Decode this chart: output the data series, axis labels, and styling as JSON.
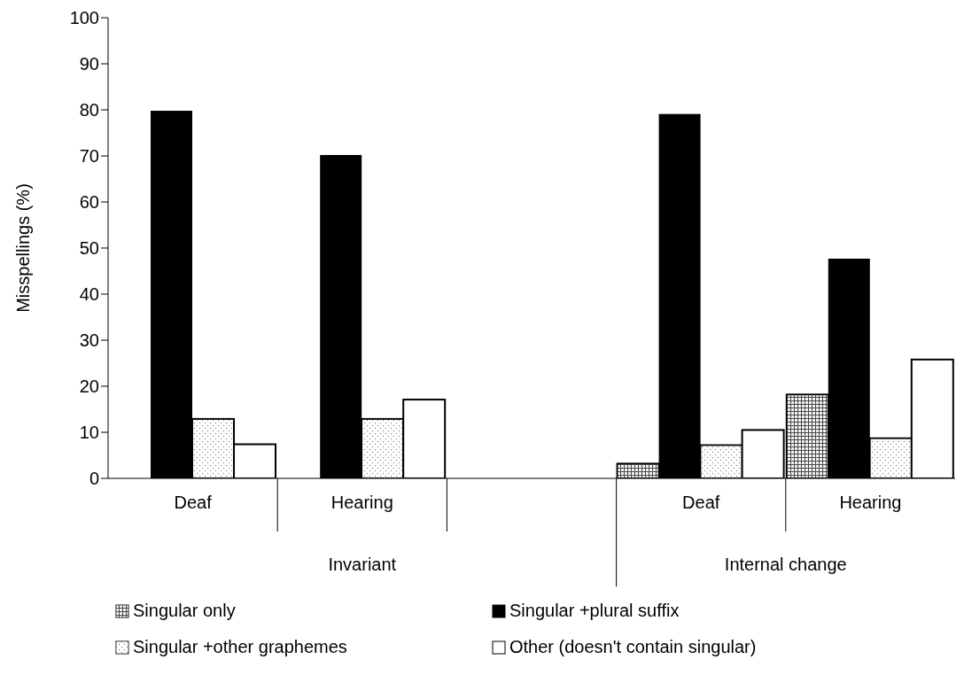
{
  "chart_data": {
    "type": "bar",
    "ylabel": "Misspellings (%)",
    "categories": [
      "Deaf",
      "Hearing",
      null,
      "Deaf",
      "Hearing"
    ],
    "series": [
      {
        "name": "Singular only",
        "color": "#bfbfbf",
        "values": [
          0,
          0,
          null,
          3.2,
          18.2
        ]
      },
      {
        "name": "Singular +plural suffix",
        "color": "#000000",
        "values": [
          79.8,
          70.2,
          null,
          79.1,
          47.7
        ]
      },
      {
        "name": "Singular +other graphemes",
        "color": "#f2f2f2",
        "values": [
          12.9,
          12.9,
          null,
          7.2,
          8.7
        ]
      },
      {
        "name": "Other (doesn't contain singular)",
        "color": "#ffffff",
        "values": [
          7.4,
          17.1,
          null,
          10.5,
          25.8
        ]
      }
    ],
    "annotations": [
      "Invariant",
      "Internal change"
    ],
    "ylim": [
      0,
      100
    ],
    "yticks": [
      0,
      10,
      20,
      30,
      40,
      50,
      60,
      70,
      80,
      90,
      100
    ],
    "grid": false,
    "legend": "bottom"
  }
}
